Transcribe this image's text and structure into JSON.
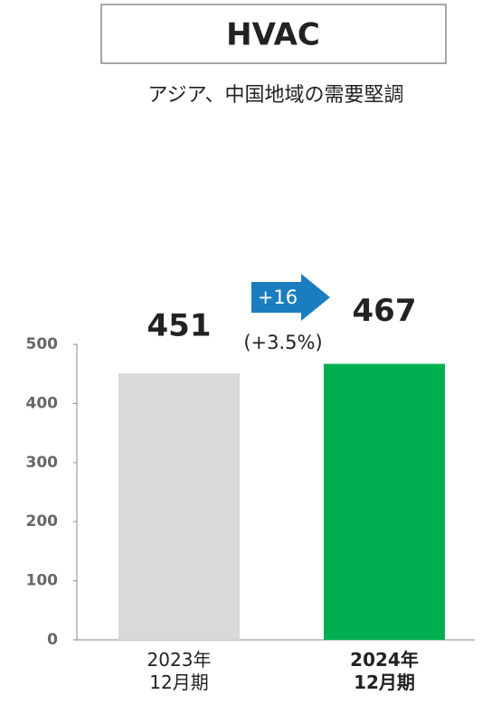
{
  "chart_data": {
    "type": "bar",
    "title": "HVAC",
    "subtitle": "アジア、中国地域の需要堅調",
    "categories": [
      "2023年\n12月期",
      "2024年\n12月期"
    ],
    "values": [
      451,
      467
    ],
    "colors": [
      "#d9d9d9",
      "#00b050"
    ],
    "bold_category": 1,
    "ylim": [
      0,
      500
    ],
    "yticks": [
      0,
      100,
      200,
      300,
      400,
      500
    ],
    "grid": false,
    "annotations": {
      "change": "+16",
      "change_color": "#1a7dc0",
      "percent": "(+3.5%)"
    }
  }
}
